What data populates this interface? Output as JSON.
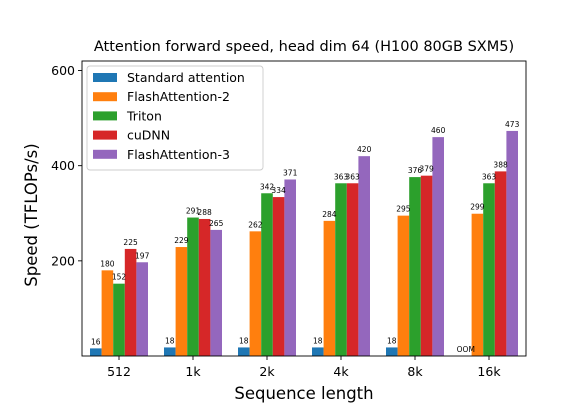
{
  "chart_data": {
    "type": "bar",
    "title": "Attention forward speed, head dim 64 (H100 80GB SXM5)",
    "xlabel": "Sequence length",
    "ylabel": "Speed (TFLOPs/s)",
    "categories": [
      "512",
      "1k",
      "2k",
      "4k",
      "8k",
      "16k"
    ],
    "ylim": [
      0,
      620
    ],
    "yticks": [
      200,
      400,
      600
    ],
    "grid": false,
    "legend_position": "top-left",
    "series": [
      {
        "name": "Standard attention",
        "color": "#1f77b4",
        "values": [
          16,
          18,
          18,
          18,
          18,
          null
        ],
        "labels": [
          "16",
          "18",
          "18",
          "18",
          "18",
          "OOM"
        ]
      },
      {
        "name": "FlashAttention-2",
        "color": "#ff7f0e",
        "values": [
          180,
          229,
          262,
          284,
          295,
          299
        ],
        "labels": [
          "180",
          "229",
          "262",
          "284",
          "295",
          "299"
        ]
      },
      {
        "name": "Triton",
        "color": "#2ca02c",
        "values": [
          152,
          291,
          342,
          363,
          376,
          363
        ],
        "labels": [
          "152",
          "291",
          "342",
          "363",
          "376",
          "363"
        ]
      },
      {
        "name": "cuDNN",
        "color": "#d62728",
        "values": [
          225,
          288,
          334,
          363,
          379,
          388
        ],
        "labels": [
          "225",
          "288",
          "334",
          "363",
          "379",
          "388"
        ]
      },
      {
        "name": "FlashAttention-3",
        "color": "#9467bd",
        "values": [
          197,
          265,
          371,
          420,
          460,
          473
        ],
        "labels": [
          "197",
          "265",
          "371",
          "420",
          "460",
          "473"
        ]
      }
    ]
  }
}
